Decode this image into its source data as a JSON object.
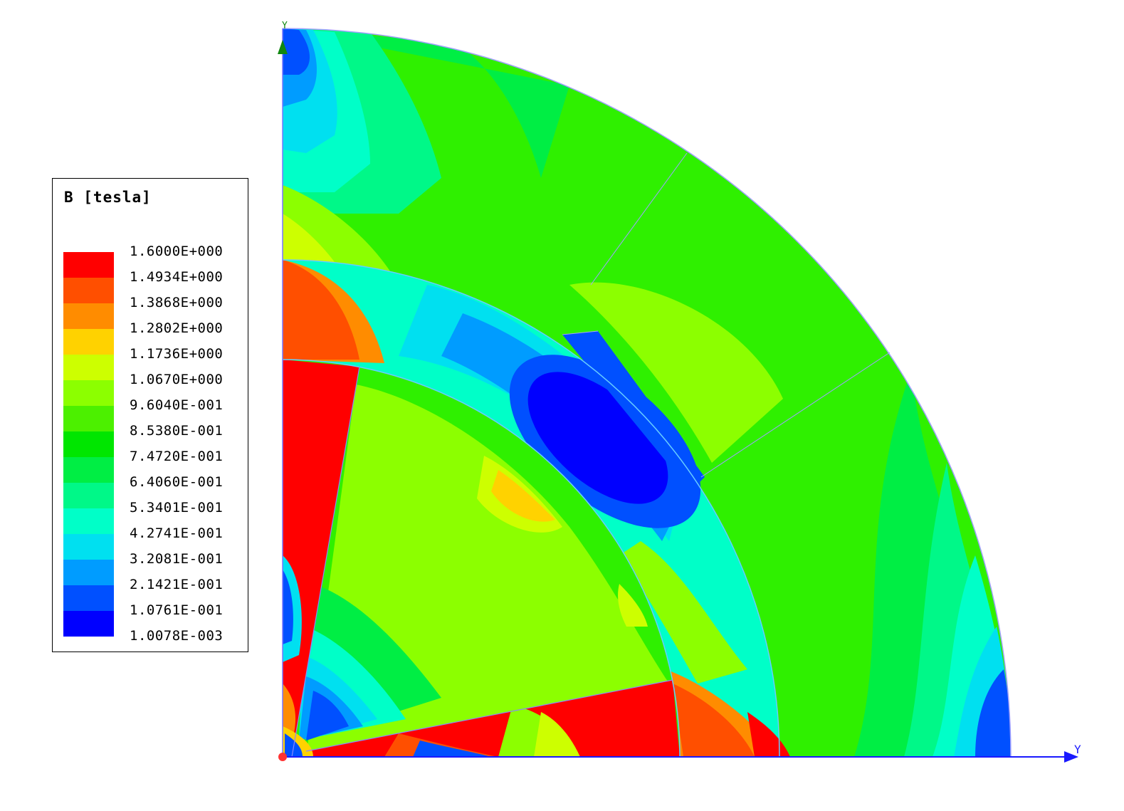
{
  "legend": {
    "title": "B [tesla]",
    "labels": [
      "1.6000E+000",
      "1.4934E+000",
      "1.3868E+000",
      "1.2802E+000",
      "1.1736E+000",
      "1.0670E+000",
      "9.6040E-001",
      "8.5380E-001",
      "7.4720E-001",
      "6.4060E-001",
      "5.3401E-001",
      "4.2741E-001",
      "3.2081E-001",
      "2.1421E-001",
      "1.0761E-001",
      "1.0078E-003"
    ],
    "colors": [
      "#ff0000",
      "#ff4f00",
      "#ff8c00",
      "#ffd200",
      "#cdff00",
      "#8cff00",
      "#4cf000",
      "#00e600",
      "#00ee44",
      "#00f888",
      "#00ffc8",
      "#00e0f0",
      "#009cff",
      "#0050ff",
      "#0000ff"
    ]
  },
  "axes": {
    "x_label": "Y",
    "y_label": "Y"
  }
}
